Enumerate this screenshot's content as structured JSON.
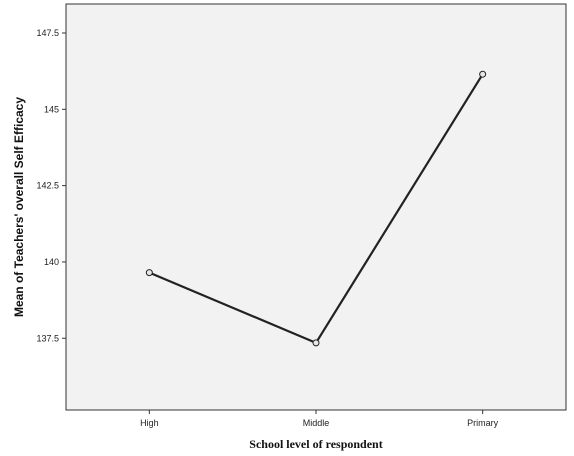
{
  "chart_data": {
    "type": "line",
    "xlabel": "School level of respondent",
    "ylabel": "Mean of Teachers' overall Self Efficacy",
    "categories": [
      "High",
      "Middle",
      "Primary"
    ],
    "series": [
      {
        "values": [
          139.65,
          137.35,
          146.15
        ]
      }
    ],
    "yticks": [
      137.5,
      140,
      142.5,
      145,
      147.5
    ],
    "ytick_labels": [
      "137.5",
      "140",
      "142.5",
      "145",
      "147.5"
    ],
    "ylim": [
      135.15,
      148.45
    ],
    "grid": false,
    "legend": "none",
    "colors": {
      "plot_background": "#f2f2f2",
      "line": "#222222",
      "marker_fill": "#e8e8e8",
      "frame": "#333333"
    }
  }
}
